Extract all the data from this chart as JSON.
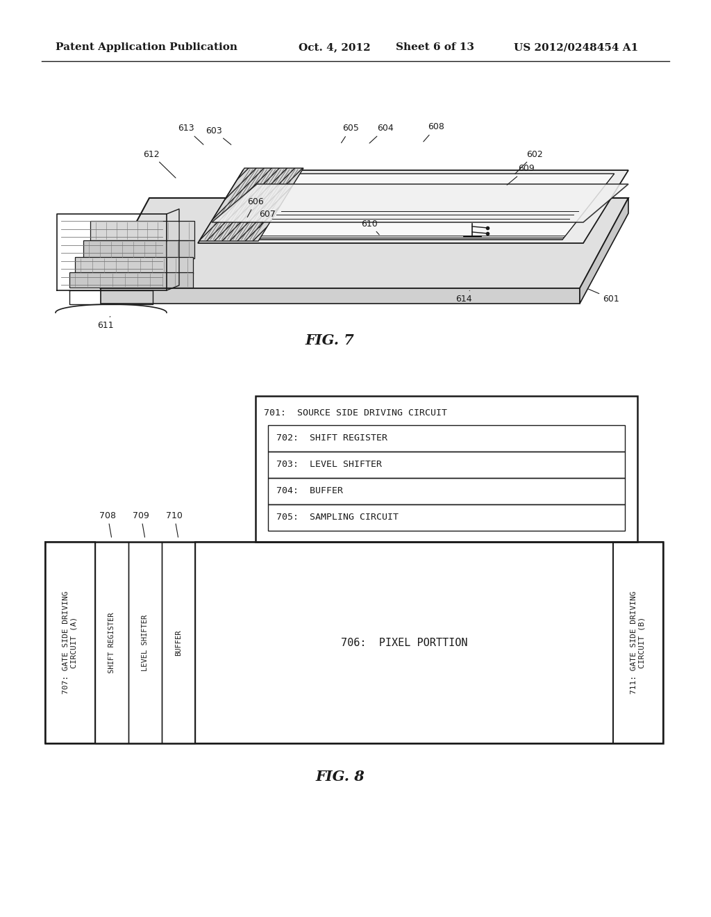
{
  "header_left": "Patent Application Publication",
  "header_mid": "Oct. 4, 2012   Sheet 6 of 13",
  "header_right": "US 2012/0248454 A1",
  "fig7_caption": "FIG. 7",
  "fig8_caption": "FIG. 8",
  "bg_color": "#ffffff",
  "line_color": "#1a1a1a",
  "gray_light": "#e8e8e8",
  "gray_mid": "#cccccc",
  "gray_dark": "#aaaaaa"
}
